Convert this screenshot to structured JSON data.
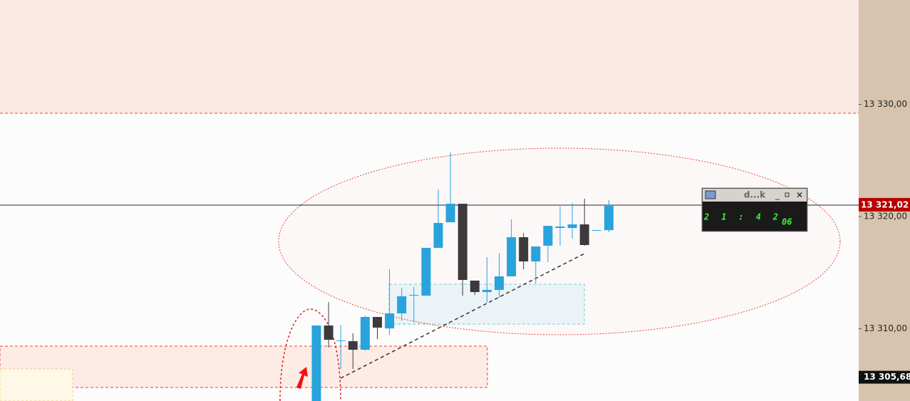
{
  "chart_data": {
    "type": "candlestick",
    "up_color": "#29a3dc",
    "down_color": "#3d3a3d",
    "open": [
      13303.56,
      13310.29,
      13308.89,
      13308.89,
      13308.13,
      13311.05,
      13310.03,
      13311.37,
      13313.02,
      13312.95,
      13317.21,
      13319.49,
      13321.14,
      13314.29,
      13313.27,
      13313.46,
      13314.67,
      13318.16,
      13316.0,
      13317.4,
      13318.98,
      13318.98,
      13319.3,
      13318.79,
      13318.79
    ],
    "high": [
      13310.29,
      13312.38,
      13310.35,
      13309.59,
      13311.17,
      13311.05,
      13315.3,
      13313.65,
      13313.71,
      13317.21,
      13322.41,
      13325.71,
      13321.14,
      13314.29,
      13316.38,
      13316.76,
      13319.75,
      13318.54,
      13317.33,
      13319.17,
      13320.89,
      13321.21,
      13321.59,
      13318.79,
      13321.46
    ],
    "low": [
      13303.56,
      13308.32,
      13306.41,
      13306.41,
      13308.06,
      13309.08,
      13309.46,
      13310.73,
      13310.6,
      13312.95,
      13317.21,
      13319.49,
      13312.95,
      13313.02,
      13312.32,
      13312.76,
      13314.67,
      13315.3,
      13314.03,
      13315.94,
      13317.4,
      13318.03,
      13317.4,
      13318.79,
      13318.6
    ],
    "close": [
      13310.29,
      13309.02,
      13308.95,
      13308.13,
      13311.05,
      13310.1,
      13311.37,
      13312.89,
      13313.02,
      13317.21,
      13319.43,
      13321.14,
      13314.35,
      13313.27,
      13313.46,
      13314.67,
      13318.16,
      13316.0,
      13317.33,
      13319.17,
      13319.11,
      13319.3,
      13317.46,
      13318.79,
      13320.95
    ],
    "ylim": [
      13303.56,
      13339.3
    ],
    "yticks": [
      {
        "value": 13310,
        "label": "13 310,00"
      },
      {
        "value": 13320,
        "label": "13 320,00"
      },
      {
        "value": 13330,
        "label": "13 330,00"
      }
    ],
    "last_price": {
      "value": 13321.02,
      "label": "13 321,02"
    },
    "marker_price": {
      "value": 13305.68,
      "label": "13 305,68"
    }
  },
  "clock_widget": {
    "title": "d...k",
    "time": "21:42",
    "seconds": "06"
  }
}
